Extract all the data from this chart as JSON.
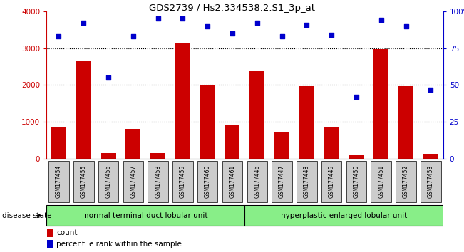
{
  "title": "GDS2739 / Hs2.334538.2.S1_3p_at",
  "samples": [
    "GSM177454",
    "GSM177455",
    "GSM177456",
    "GSM177457",
    "GSM177458",
    "GSM177459",
    "GSM177460",
    "GSM177461",
    "GSM177446",
    "GSM177447",
    "GSM177448",
    "GSM177449",
    "GSM177450",
    "GSM177451",
    "GSM177452",
    "GSM177453"
  ],
  "counts": [
    850,
    2650,
    150,
    820,
    150,
    3150,
    2000,
    930,
    2380,
    730,
    1980,
    850,
    100,
    2980,
    1980,
    110
  ],
  "percentiles": [
    83,
    92,
    55,
    83,
    95,
    95,
    90,
    85,
    92,
    83,
    91,
    84,
    42,
    94,
    90,
    47
  ],
  "group1_label": "normal terminal duct lobular unit",
  "group1_count": 8,
  "group2_label": "hyperplastic enlarged lobular unit",
  "group2_count": 8,
  "ylim_left": [
    0,
    4000
  ],
  "ylim_right": [
    0,
    100
  ],
  "yticks_left": [
    0,
    1000,
    2000,
    3000,
    4000
  ],
  "yticks_right": [
    0,
    25,
    50,
    75,
    100
  ],
  "bar_color": "#cc0000",
  "dot_color": "#0000cc",
  "group_color": "#88ee88",
  "label_bg_color": "#cccccc",
  "legend_count_label": "count",
  "legend_pct_label": "percentile rank within the sample",
  "disease_state_label": "disease state"
}
